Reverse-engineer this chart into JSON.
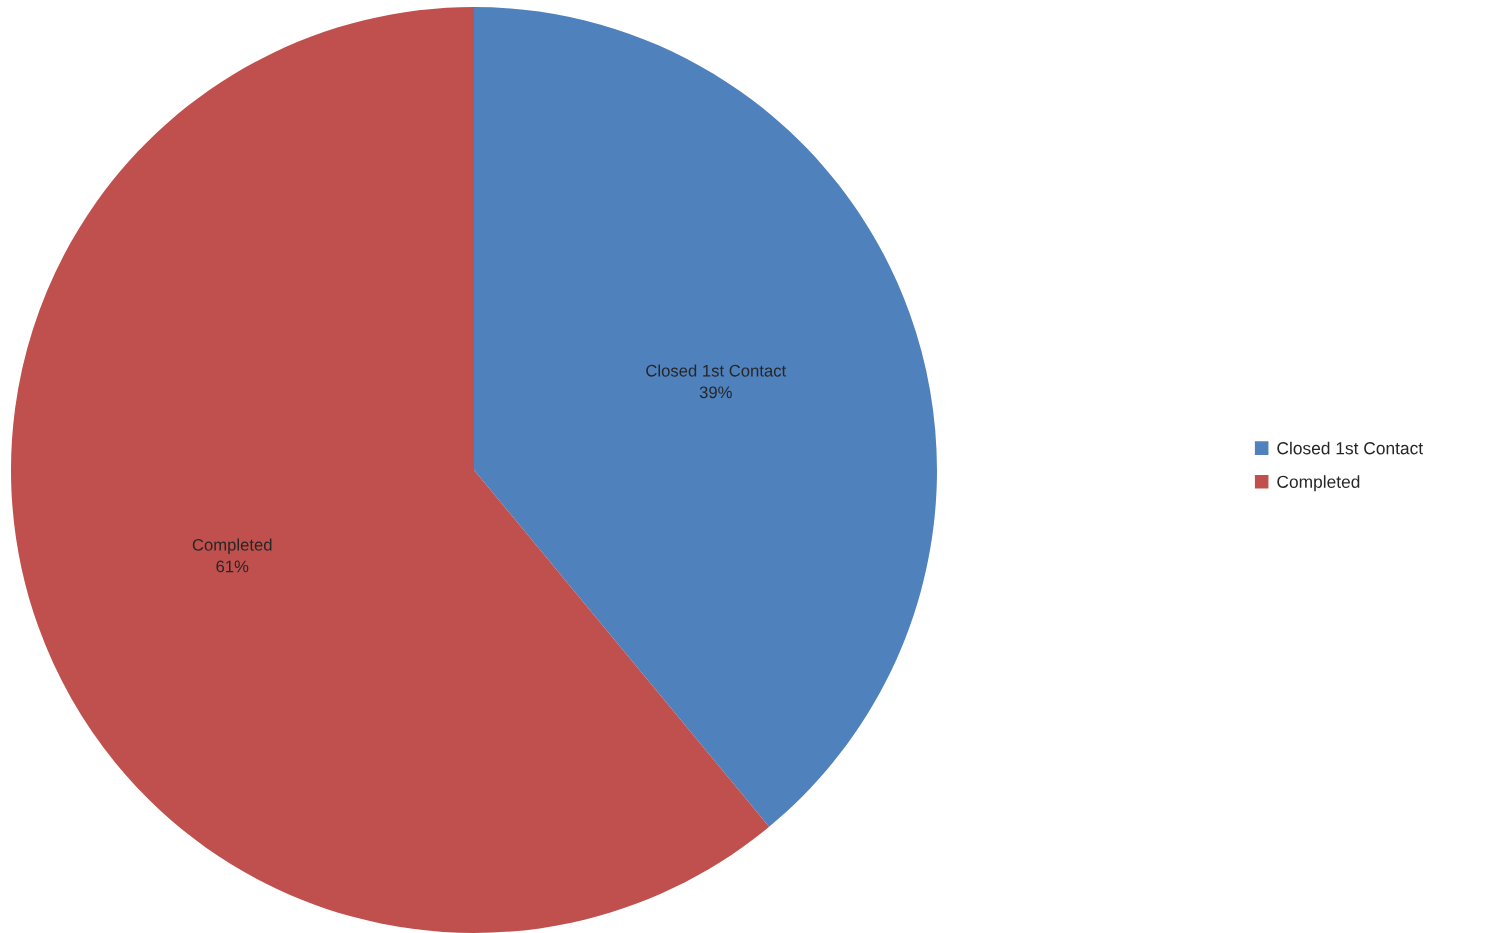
{
  "chart_data": {
    "type": "pie",
    "categories": [
      "Closed 1st Contact",
      "Completed"
    ],
    "values": [
      39,
      61
    ],
    "colors": [
      "#4f81bd",
      "#c0504d"
    ],
    "value_labels": [
      "39%",
      "61%"
    ],
    "legend": "right"
  }
}
